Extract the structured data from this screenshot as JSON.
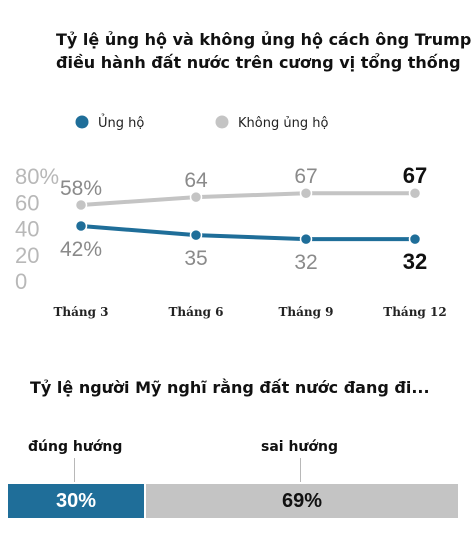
{
  "chart_data": [
    {
      "type": "line",
      "title": "Tỷ lệ ủng hộ và không ủng hộ cách ông Trump điều hành đất nước trên cương vị tổng thống",
      "title_lines": [
        "Tỷ lệ ủng hộ và không ủng hộ cách ông Trump",
        "điều hành đất nước trên cương vị tổng thống"
      ],
      "categories": [
        "Tháng 3",
        "Tháng 6",
        "Tháng 9",
        "Tháng 12"
      ],
      "series": [
        {
          "name": "Ủng hộ",
          "color": "#1f6e99",
          "values": [
            42,
            35,
            32,
            32
          ],
          "labels": [
            "42%",
            "35",
            "32",
            "32"
          ]
        },
        {
          "name": "Không ủng hộ",
          "color": "#c4c4c4",
          "values": [
            58,
            64,
            67,
            67
          ],
          "labels": [
            "58%",
            "64",
            "67",
            "67"
          ]
        }
      ],
      "y_ticks": [
        "0",
        "20",
        "40",
        "60",
        "80%"
      ],
      "ylim": [
        0,
        80
      ],
      "grid": false,
      "legend_position": "top-left"
    },
    {
      "type": "bar",
      "orientation": "horizontal-stacked",
      "title": "Tỷ lệ người Mỹ nghĩ rằng đất nước đang đi...",
      "categories": [
        "đúng hướng",
        "sai hướng"
      ],
      "values": [
        30,
        69
      ],
      "value_labels": [
        "30%",
        "69%"
      ],
      "colors": [
        "#1f6e99",
        "#c4c4c4"
      ]
    }
  ]
}
